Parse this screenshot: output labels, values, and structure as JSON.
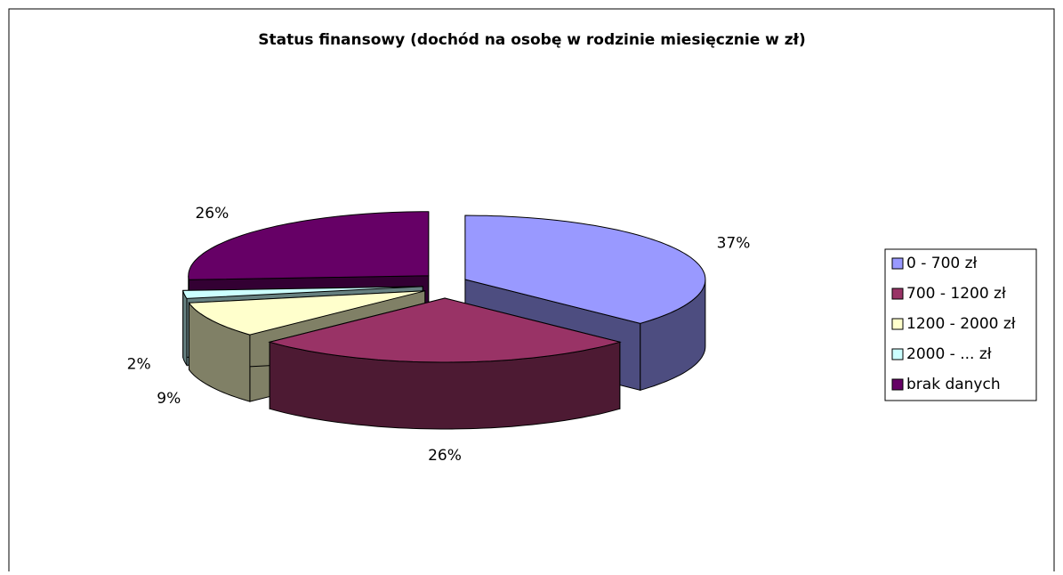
{
  "chart_data": {
    "type": "pie3d",
    "title": "Status finansowy (dochód na osobę w rodzinie miesięcznie w zł)",
    "categories": [
      "0 - 700 zł",
      "700 - 1200 zł",
      "1200 - 2000 zł",
      "2000 - ... zł",
      "brak danych"
    ],
    "values": [
      37,
      26,
      9,
      2,
      26
    ],
    "value_labels": [
      "37%",
      "26%",
      "9%",
      "2%",
      "26%"
    ],
    "colors": [
      "#9999ff",
      "#993366",
      "#ffffcc",
      "#ccffff",
      "#660066"
    ],
    "legend": "right"
  }
}
